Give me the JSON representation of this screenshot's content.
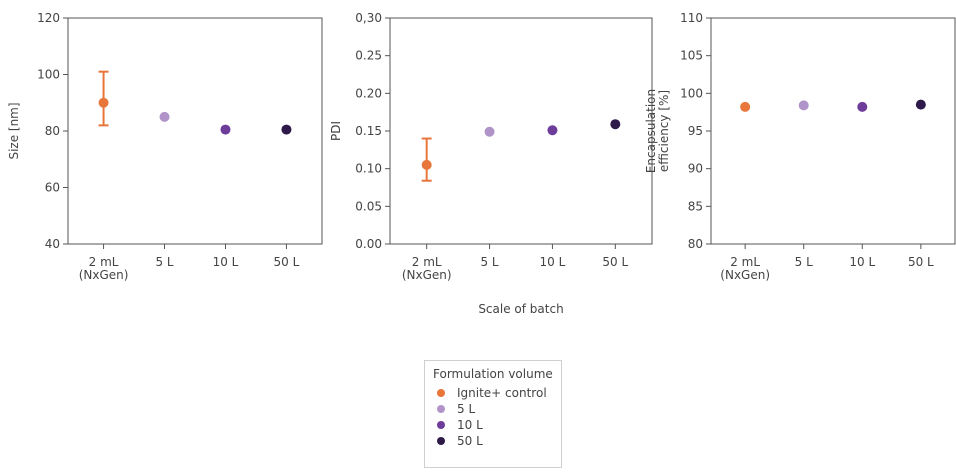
{
  "chart_data": [
    {
      "type": "scatter",
      "categories": [
        "2 mL\n(NxGen)",
        "5 L",
        "10 L",
        "50 L"
      ],
      "ylabel": "Size [nm]",
      "xlabel": "",
      "ylim": [
        40,
        120
      ],
      "yticks": [
        "40",
        "60",
        "80",
        "100",
        "120"
      ],
      "series": [
        {
          "name": "Ignite+ control",
          "color": "#e8763a",
          "values": [
            90,
            null,
            null,
            null
          ],
          "err": [
            [
              82,
              101
            ],
            null,
            null,
            null
          ]
        },
        {
          "name": "5 L",
          "color": "#b093c9",
          "values": [
            null,
            85,
            null,
            null
          ]
        },
        {
          "name": "10 L",
          "color": "#6e3c9a",
          "values": [
            null,
            null,
            80.5,
            null
          ]
        },
        {
          "name": "50 L",
          "color": "#2d1a4a",
          "values": [
            null,
            null,
            null,
            80.5
          ]
        }
      ]
    },
    {
      "type": "scatter",
      "categories": [
        "2 mL\n(NxGen)",
        "5 L",
        "10 L",
        "50 L"
      ],
      "ylabel": "PDI",
      "xlabel": "Scale of batch",
      "ylim": [
        0,
        0.3
      ],
      "yticks": [
        "0.00",
        "0.05",
        "0.10",
        "0.15",
        "0.20",
        "0.25",
        "0,30"
      ],
      "series": [
        {
          "name": "Ignite+ control",
          "color": "#e8763a",
          "values": [
            0.105,
            null,
            null,
            null
          ],
          "err": [
            [
              0.084,
              0.14
            ],
            null,
            null,
            null
          ]
        },
        {
          "name": "5 L",
          "color": "#b093c9",
          "values": [
            null,
            0.149,
            null,
            null
          ]
        },
        {
          "name": "10 L",
          "color": "#6e3c9a",
          "values": [
            null,
            null,
            0.151,
            null
          ]
        },
        {
          "name": "50 L",
          "color": "#2d1a4a",
          "values": [
            null,
            null,
            null,
            0.159
          ]
        }
      ]
    },
    {
      "type": "scatter",
      "categories": [
        "2 mL\n(NxGen)",
        "5 L",
        "10 L",
        "50 L"
      ],
      "ylabel": "Encapsulation\nefficiency [%]",
      "xlabel": "",
      "ylim": [
        80,
        110
      ],
      "yticks": [
        "80",
        "85",
        "90",
        "95",
        "100",
        "105",
        "110"
      ],
      "series": [
        {
          "name": "Ignite+ control",
          "color": "#e8763a",
          "values": [
            98.2,
            null,
            null,
            null
          ]
        },
        {
          "name": "5 L",
          "color": "#b093c9",
          "values": [
            null,
            98.4,
            null,
            null
          ]
        },
        {
          "name": "10 L",
          "color": "#6e3c9a",
          "values": [
            null,
            null,
            98.2,
            null
          ]
        },
        {
          "name": "50 L",
          "color": "#2d1a4a",
          "values": [
            null,
            null,
            null,
            98.5
          ]
        }
      ]
    }
  ],
  "legend": {
    "title": "Formulation volume",
    "items": [
      {
        "label": "Ignite+ control",
        "color": "#e8763a"
      },
      {
        "label": "5 L",
        "color": "#b093c9"
      },
      {
        "label": "10 L",
        "color": "#6e3c9a"
      },
      {
        "label": "50 L",
        "color": "#2d1a4a"
      }
    ]
  }
}
